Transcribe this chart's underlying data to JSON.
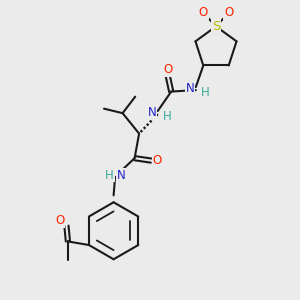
{
  "background_color": "#ebebeb",
  "bond_color": "#1a1a1a",
  "bond_width": 1.5,
  "atom_colors": {
    "O": "#ff2200",
    "N": "#2222cc",
    "S": "#bbbb00",
    "C": "#1a1a1a",
    "H": "#3aaa99"
  },
  "font_size": 8.5,
  "fig_size": [
    3.0,
    3.0
  ],
  "dpi": 100
}
